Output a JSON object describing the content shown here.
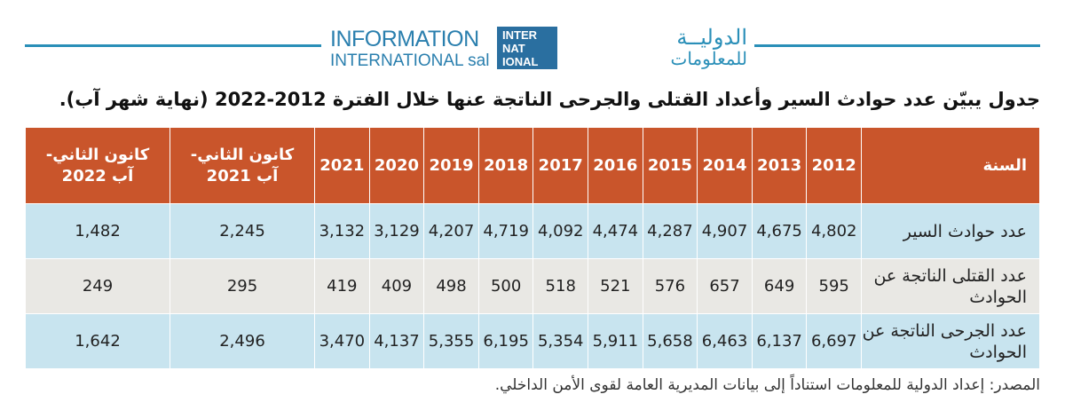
{
  "header": {
    "logo_en_1": "INFORMATION",
    "logo_en_2": "INTERNATIONAL sal",
    "logo_box": [
      "INTER",
      "NAT",
      "IONAL"
    ],
    "logo_ar_1": "الدوليــة",
    "logo_ar_2": "للمعلومات"
  },
  "title": "جدول يبيّن عدد حوادث السير وأعداد القتلى والجرحى الناتجة عنها خلال الفترة 2012-2022 (نهاية شهر آب).",
  "table": {
    "header": [
      "السنة",
      "2012",
      "2013",
      "2014",
      "2015",
      "2016",
      "2017",
      "2018",
      "2019",
      "2020",
      "2021",
      "كانون الثاني-آب 2021",
      "كانون الثاني- آب 2022"
    ],
    "rows": [
      [
        "عدد حوادث السير",
        "4,802",
        "4,675",
        "4,907",
        "4,287",
        "4,474",
        "4,092",
        "4,719",
        "4,207",
        "3,129",
        "3,132",
        "2,245",
        "1,482"
      ],
      [
        "عدد القتلى الناتجة عن الحوادث",
        "595",
        "649",
        "657",
        "576",
        "521",
        "518",
        "500",
        "498",
        "409",
        "419",
        "295",
        "249"
      ],
      [
        "عدد الجرحى الناتجة عن الحوادث",
        "6,697",
        "6,137",
        "6,463",
        "5,658",
        "5,911",
        "5,354",
        "6,195",
        "5,355",
        "4,137",
        "3,470",
        "2,496",
        "1,642"
      ]
    ]
  },
  "source": "المصدر: إعداد الدولية للمعلومات استناداً إلى بيانات المديرية العامة لقوى الأمن الداخلي."
}
